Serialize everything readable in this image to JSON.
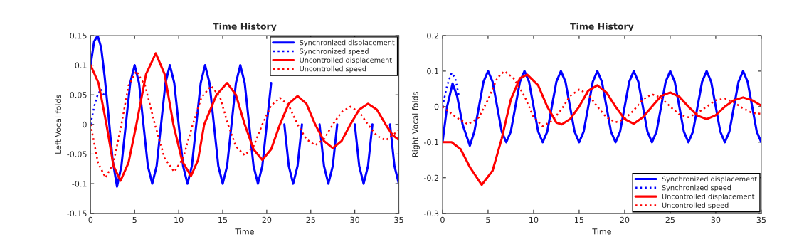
{
  "chart_data": [
    {
      "type": "line",
      "title": "Time History",
      "xlabel": "Time",
      "ylabel": "Left Vocal folds",
      "xlim": [
        0,
        35
      ],
      "xticks": [
        0,
        5,
        10,
        15,
        20,
        25,
        30,
        35
      ],
      "ylim": [
        -0.15,
        0.15
      ],
      "yticks": [
        -0.15,
        -0.1,
        -0.05,
        0,
        0.05,
        0.1,
        0.15
      ],
      "grid": false,
      "legend": "top right",
      "series": [
        {
          "name": "Synchronized displacement",
          "color": "#0000ff",
          "line_style": "solid",
          "x": [
            0,
            0.4,
            0.8,
            1.2,
            1.6,
            2,
            2.5,
            3,
            3.5,
            4,
            4.5,
            5,
            5.5,
            6,
            6.5,
            7,
            7.5,
            8,
            8.5,
            9,
            9.5,
            10,
            10.5,
            11,
            11.5,
            12,
            12.5,
            13,
            13.5,
            14,
            14.5,
            15,
            15.5,
            16,
            16.5,
            17,
            17.5,
            18,
            18.5,
            19,
            19.5,
            20,
            20.5,
            21,
            21.5,
            22,
            22.5,
            23,
            23.5,
            24,
            24.5,
            25,
            25.5,
            26,
            26.5,
            27,
            27.5,
            28,
            28.5,
            29,
            29.5,
            30,
            30.5,
            31,
            31.5,
            32,
            32.5,
            33,
            33.5,
            34,
            34.5,
            35
          ],
          "values": [
            0.1,
            0.14,
            0.15,
            0.13,
            0.08,
            0.02,
            -0.06,
            -0.105,
            -0.07,
            0,
            0.07,
            0.1,
            0.07,
            0,
            -0.07,
            -0.1,
            -0.07,
            0,
            0.07,
            0.1,
            0.07,
            0,
            -0.07,
            -0.1,
            -0.07,
            0,
            0.07,
            0.1,
            0.07,
            0,
            -0.07,
            -0.1,
            -0.07,
            0,
            0.07,
            0.1,
            0.07,
            0,
            -0.07,
            -0.1,
            -0.07,
            0,
            0.07,
            null,
            null,
            0,
            -0.07,
            -0.1,
            -0.07,
            0,
            null,
            null,
            null,
            0,
            -0.07,
            -0.1,
            -0.07,
            0,
            null,
            null,
            null,
            0,
            -0.07,
            -0.1,
            -0.07,
            0,
            null,
            null,
            null,
            0,
            -0.07,
            -0.1
          ]
        },
        {
          "name": "Synchronized speed",
          "color": "#0000ff",
          "line_style": "dotted",
          "x": [
            0,
            0.4,
            0.8,
            1.2,
            1.5
          ],
          "values": [
            0,
            0.03,
            0.05,
            0.06,
            0.05
          ]
        },
        {
          "name": "Uncontrolled displacement",
          "color": "#ff0000",
          "line_style": "solid",
          "x": [
            0,
            0.9,
            1.8,
            2.6,
            3.4,
            4.3,
            5.2,
            6.3,
            7.4,
            8.4,
            9.4,
            10.4,
            11.4,
            12.2,
            12.9,
            14.3,
            15.5,
            16.5,
            17.5,
            18.5,
            19.5,
            20.5,
            21.5,
            22.5,
            23.5,
            24.5,
            25.5,
            26.5,
            27.5,
            28.5,
            29.5,
            30.5,
            31.5,
            32.5,
            33.5,
            34.3,
            35
          ],
          "values": [
            0.1,
            0.07,
            0,
            -0.07,
            -0.095,
            -0.065,
            0,
            0.085,
            0.12,
            0.085,
            0,
            -0.062,
            -0.087,
            -0.06,
            0,
            0.05,
            0.07,
            0.05,
            0,
            -0.042,
            -0.06,
            -0.042,
            0,
            0.035,
            0.048,
            0.035,
            0,
            -0.028,
            -0.04,
            -0.028,
            0,
            0.025,
            0.035,
            0.025,
            0,
            -0.018,
            -0.026
          ]
        },
        {
          "name": "Uncontrolled speed",
          "color": "#ff0000",
          "line_style": "dotted",
          "x": [
            0,
            0.85,
            1.7,
            2.6,
            3.5,
            4.3,
            5.2,
            6.2,
            7.3,
            8.4,
            9.5,
            10.5,
            11.6,
            12.6,
            13.7,
            14.7,
            15.6,
            16.5,
            17.5,
            18.5,
            19.5,
            20.5,
            21.5,
            22.5,
            23.5,
            24.5,
            25.5,
            26.5,
            27.5,
            28.5,
            29.5,
            30.5,
            31.5,
            32.5,
            33.5,
            34.3,
            35
          ],
          "values": [
            0,
            -0.065,
            -0.09,
            -0.065,
            0,
            0.065,
            0.09,
            0.065,
            0,
            -0.057,
            -0.08,
            -0.057,
            0,
            0.046,
            0.065,
            0.046,
            0,
            -0.037,
            -0.052,
            -0.037,
            0,
            0.032,
            0.045,
            0.032,
            0,
            -0.025,
            -0.035,
            -0.025,
            0,
            0.021,
            0.03,
            0.021,
            0,
            -0.019,
            -0.027,
            -0.018,
            -0.01
          ]
        }
      ]
    },
    {
      "type": "line",
      "title": "Time History",
      "xlabel": "Time",
      "ylabel": "Right Vocal folds",
      "xlim": [
        0,
        35
      ],
      "xticks": [
        0,
        5,
        10,
        15,
        20,
        25,
        30,
        35
      ],
      "ylim": [
        -0.3,
        0.2
      ],
      "yticks": [
        -0.3,
        -0.2,
        -0.1,
        0,
        0.1,
        0.2
      ],
      "grid": false,
      "legend": "bottom right",
      "series": [
        {
          "name": "Synchronized displacement",
          "color": "#0000ff",
          "line_style": "solid",
          "x": [
            0,
            0.5,
            1.1,
            1.6,
            2.2,
            3,
            3.5,
            4,
            4.5,
            5,
            5.5,
            6,
            6.5,
            7,
            7.5,
            8,
            8.5,
            9,
            9.5,
            10,
            10.5,
            11,
            11.5,
            12,
            12.5,
            13,
            13.5,
            14,
            14.5,
            15,
            15.5,
            16,
            16.5,
            17,
            17.5,
            18,
            18.5,
            19,
            19.5,
            20,
            20.5,
            21,
            21.5,
            22,
            22.5,
            23,
            23.5,
            24,
            24.5,
            25,
            25.5,
            26,
            26.5,
            27,
            27.5,
            28,
            28.5,
            29,
            29.5,
            30,
            30.5,
            31,
            31.5,
            32,
            32.5,
            33,
            33.5,
            34,
            34.5,
            35
          ],
          "values": [
            -0.1,
            0,
            0.065,
            0.03,
            -0.05,
            -0.11,
            -0.07,
            0,
            0.07,
            0.1,
            0.07,
            0,
            -0.07,
            -0.1,
            -0.07,
            0,
            0.07,
            0.1,
            0.07,
            0,
            -0.07,
            -0.1,
            -0.07,
            0,
            0.07,
            0.1,
            0.07,
            0,
            -0.07,
            -0.1,
            -0.07,
            0,
            0.07,
            0.1,
            0.07,
            0,
            -0.07,
            -0.1,
            -0.07,
            0,
            0.07,
            0.1,
            0.07,
            0,
            -0.07,
            -0.1,
            -0.07,
            0,
            0.07,
            0.1,
            0.07,
            0,
            -0.07,
            -0.1,
            -0.07,
            0,
            0.07,
            0.1,
            0.07,
            0,
            -0.07,
            -0.1,
            -0.07,
            0,
            0.07,
            0.1,
            0.07,
            0,
            -0.07,
            -0.1
          ]
        },
        {
          "name": "Synchronized speed",
          "color": "#0000ff",
          "line_style": "dotted",
          "x": [
            0,
            0.5,
            1,
            1.4,
            1.8
          ],
          "values": [
            0,
            0.06,
            0.095,
            0.08,
            0.03
          ]
        },
        {
          "name": "Uncontrolled displacement",
          "color": "#ff0000",
          "line_style": "solid",
          "x": [
            0,
            1,
            2,
            3,
            4.3,
            5.5,
            6.5,
            7.5,
            8.5,
            9.3,
            10.5,
            11.5,
            12.5,
            13.1,
            14,
            15,
            16,
            17,
            18,
            19,
            20,
            21,
            22,
            23,
            24,
            25,
            26,
            27,
            28,
            29,
            30,
            31,
            32,
            33,
            34,
            35
          ],
          "values": [
            -0.1,
            -0.1,
            -0.12,
            -0.17,
            -0.22,
            -0.18,
            -0.09,
            0.02,
            0.08,
            0.09,
            0.06,
            0,
            -0.045,
            -0.05,
            -0.035,
            0,
            0.045,
            0.06,
            0.04,
            0,
            -0.035,
            -0.048,
            -0.03,
            0,
            0.03,
            0.04,
            0.028,
            0,
            -0.025,
            -0.035,
            -0.024,
            0,
            0.018,
            0.026,
            0.018,
            0.003
          ]
        },
        {
          "name": "Uncontrolled speed",
          "color": "#ff0000",
          "line_style": "dotted",
          "x": [
            0,
            1.5,
            2.8,
            4,
            5,
            6,
            6.8,
            7.8,
            9,
            10,
            11,
            12,
            13,
            14,
            15,
            16,
            17,
            18,
            19,
            20,
            21,
            22,
            23,
            24,
            25,
            26,
            27,
            28,
            29,
            30,
            31,
            32,
            33,
            34,
            35
          ],
          "values": [
            0,
            -0.03,
            -0.05,
            -0.03,
            0.02,
            0.08,
            0.1,
            0.08,
            0.03,
            -0.03,
            -0.055,
            -0.04,
            -0.01,
            0.03,
            0.048,
            0.035,
            0,
            -0.03,
            -0.044,
            -0.035,
            -0.01,
            0.02,
            0.035,
            0.025,
            0,
            -0.022,
            -0.03,
            -0.018,
            0,
            0.018,
            0.023,
            0.012,
            -0.005,
            -0.018,
            -0.02
          ]
        }
      ]
    }
  ]
}
